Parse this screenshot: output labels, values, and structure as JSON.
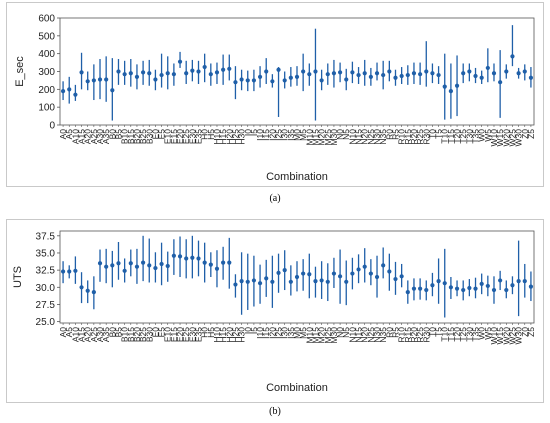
{
  "chart_data": [
    {
      "type": "interval",
      "panel_label": "(a)",
      "xlabel": "Combination",
      "ylabel": "E_sec",
      "ylim": [
        0,
        600
      ],
      "yticks": [
        0,
        100,
        200,
        300,
        400,
        500,
        600
      ],
      "grid": false,
      "color": "#1f5fa8",
      "series": [
        {
          "mean": [
            190,
            200,
            170,
            295,
            245,
            250,
            255,
            255,
            195,
            300,
            285,
            290,
            270,
            295,
            290,
            255,
            280,
            290,
            285,
            355,
            290,
            305,
            300,
            325,
            285,
            295,
            310,
            315,
            240,
            255,
            250,
            250,
            270,
            300,
            245,
            310,
            250,
            265,
            270,
            300,
            285,
            300,
            250,
            285,
            290,
            295,
            255,
            295,
            280,
            290,
            270,
            290,
            280,
            300,
            265,
            275,
            280,
            290,
            285,
            300,
            290,
            280,
            215,
            190,
            220,
            290,
            300,
            275,
            265,
            320,
            290,
            240,
            300,
            385,
            290,
            300,
            265
          ],
          "lower": [
            140,
            120,
            135,
            200,
            195,
            140,
            145,
            130,
            25,
            225,
            225,
            215,
            200,
            225,
            220,
            195,
            210,
            200,
            220,
            320,
            230,
            245,
            230,
            240,
            220,
            230,
            225,
            250,
            145,
            195,
            190,
            190,
            210,
            230,
            210,
            45,
            205,
            215,
            220,
            190,
            220,
            25,
            195,
            225,
            210,
            240,
            195,
            235,
            230,
            220,
            220,
            250,
            200,
            245,
            220,
            230,
            225,
            230,
            225,
            215,
            235,
            230,
            30,
            35,
            50,
            235,
            245,
            235,
            230,
            240,
            245,
            40,
            260,
            330,
            260,
            250,
            210
          ],
          "upper": [
            245,
            270,
            225,
            405,
            300,
            340,
            370,
            385,
            375,
            370,
            360,
            370,
            340,
            360,
            365,
            310,
            400,
            385,
            345,
            410,
            360,
            365,
            360,
            400,
            345,
            350,
            395,
            395,
            330,
            310,
            305,
            310,
            330,
            375,
            285,
            325,
            300,
            325,
            330,
            400,
            345,
            540,
            310,
            345,
            365,
            350,
            315,
            355,
            325,
            365,
            320,
            350,
            360,
            360,
            310,
            325,
            335,
            350,
            350,
            470,
            345,
            330,
            400,
            345,
            390,
            345,
            345,
            320,
            305,
            430,
            345,
            420,
            340,
            560,
            320,
            340,
            325
          ]
        }
      ],
      "tick_labels": [
        "A0",
        "A5",
        "A10",
        "A15",
        "A20",
        "A25",
        "A30",
        "A35",
        "B0",
        "B5",
        "B10",
        "B15",
        "B20",
        "B25",
        "B30",
        "E0",
        "E5",
        "E10",
        "E15",
        "E20",
        "E25",
        "E30",
        "E35",
        "H0",
        "H5",
        "H10",
        "H15",
        "H20",
        "H25",
        "H30",
        "I0",
        "I5",
        "I10",
        "I15",
        "I20",
        "I25",
        "I30",
        "I35",
        "M0",
        "M5",
        "M10",
        "M15",
        "M20",
        "M25",
        "M30",
        "N0",
        "N5",
        "N10",
        "N15",
        "N20",
        "N25",
        "N30",
        "N35",
        "R0",
        "R5",
        "R10",
        "R15",
        "R20",
        "R25",
        "R30",
        "T0",
        "T5",
        "T10",
        "T15",
        "T20",
        "T25",
        "T30",
        "T35",
        "W0",
        "W5",
        "W10",
        "W15",
        "W20",
        "W25",
        "W30",
        "Z0",
        "Z5"
      ]
    },
    {
      "type": "interval",
      "panel_label": "(b)",
      "xlabel": "Combination",
      "ylabel": "UTS",
      "ylim": [
        24.8,
        38.2
      ],
      "yticks": [
        25.0,
        27.5,
        30.0,
        32.5,
        35.0,
        37.5
      ],
      "ytick_labels": [
        "25.0",
        "27.5",
        "30.0",
        "32.5",
        "35.0",
        "37.5"
      ],
      "grid": false,
      "color": "#1f5fa8",
      "series": [
        {
          "mean": [
            32.3,
            32.3,
            32.4,
            30.0,
            29.5,
            29.3,
            33.5,
            33.0,
            33.2,
            33.5,
            32.4,
            33.5,
            33.0,
            33.6,
            33.2,
            32.8,
            33.4,
            33.1,
            34.6,
            34.5,
            34.2,
            34.3,
            34.2,
            33.6,
            33.3,
            32.7,
            33.6,
            33.6,
            30.4,
            30.9,
            30.8,
            31.0,
            30.6,
            31.3,
            30.8,
            32.1,
            32.5,
            30.8,
            31.5,
            32.0,
            31.9,
            30.9,
            31.0,
            30.8,
            32.0,
            31.6,
            30.8,
            32.0,
            32.6,
            33.0,
            32.0,
            31.5,
            33.2,
            32.3,
            31.2,
            31.6,
            29.3,
            29.8,
            29.8,
            29.6,
            30.3,
            30.9,
            30.6,
            30.0,
            29.8,
            29.6,
            29.9,
            29.8,
            30.5,
            30.2,
            29.6,
            31.0,
            29.6,
            30.3,
            30.9,
            30.9,
            30.1
          ],
          "lower": [
            30.6,
            31.3,
            30.5,
            27.7,
            27.7,
            26.8,
            30.8,
            30.6,
            30.0,
            31.1,
            30.7,
            31.6,
            30.5,
            30.9,
            30.7,
            30.7,
            30.3,
            30.8,
            31.8,
            31.5,
            31.3,
            31.3,
            31.6,
            30.7,
            31.5,
            30.0,
            31.1,
            29.8,
            28.5,
            26.0,
            26.7,
            27.2,
            27.6,
            28.6,
            27.0,
            29.2,
            29.6,
            28.8,
            29.4,
            29.5,
            28.4,
            28.5,
            28.3,
            28.0,
            29.9,
            27.6,
            27.4,
            29.7,
            30.6,
            30.7,
            30.3,
            28.5,
            31.3,
            29.5,
            28.9,
            30.0,
            27.6,
            28.1,
            28.2,
            28.1,
            28.7,
            27.6,
            25.6,
            28.3,
            28.7,
            28.1,
            28.7,
            28.4,
            29.0,
            28.7,
            27.6,
            29.6,
            28.4,
            29.0,
            25.8,
            28.5,
            28.0
          ],
          "upper": [
            33.8,
            33.2,
            34.5,
            32.2,
            31.0,
            31.6,
            35.5,
            35.6,
            35.3,
            36.6,
            34.2,
            35.5,
            35.6,
            37.5,
            37.1,
            35.1,
            36.5,
            35.2,
            37.0,
            37.4,
            37.0,
            37.5,
            36.8,
            36.5,
            35.1,
            35.4,
            35.9,
            37.2,
            31.9,
            35.1,
            34.9,
            34.6,
            33.3,
            34.0,
            34.6,
            34.9,
            35.4,
            33.2,
            33.8,
            34.1,
            34.9,
            33.0,
            33.8,
            33.5,
            34.3,
            35.5,
            33.9,
            34.3,
            34.8,
            35.7,
            34.1,
            34.6,
            35.8,
            34.9,
            33.7,
            33.4,
            31.0,
            31.3,
            31.3,
            31.0,
            32.1,
            34.2,
            35.6,
            31.5,
            31.0,
            31.0,
            31.2,
            31.4,
            32.0,
            31.7,
            31.6,
            32.4,
            31.0,
            31.6,
            36.8,
            33.4,
            32.3
          ]
        }
      ],
      "tick_labels": [
        "A0",
        "A5",
        "A10",
        "A15",
        "A20",
        "A25",
        "A30",
        "A35",
        "B0",
        "B5",
        "B10",
        "B15",
        "B20",
        "B25",
        "B30",
        "E0",
        "E5",
        "E10",
        "E15",
        "E20",
        "E25",
        "E30",
        "E35",
        "H0",
        "H5",
        "H10",
        "H15",
        "H20",
        "H25",
        "H30",
        "I0",
        "I5",
        "I10",
        "I15",
        "I20",
        "I25",
        "I30",
        "I35",
        "M0",
        "M5",
        "M10",
        "M15",
        "M20",
        "M25",
        "M30",
        "N0",
        "N5",
        "N10",
        "N15",
        "N20",
        "N25",
        "N30",
        "N35",
        "R0",
        "R5",
        "R10",
        "R15",
        "R20",
        "R25",
        "R30",
        "T0",
        "T5",
        "T10",
        "T15",
        "T20",
        "T25",
        "T30",
        "T35",
        "W0",
        "W5",
        "W10",
        "W15",
        "W20",
        "W25",
        "W30",
        "Z0",
        "Z5"
      ]
    }
  ]
}
